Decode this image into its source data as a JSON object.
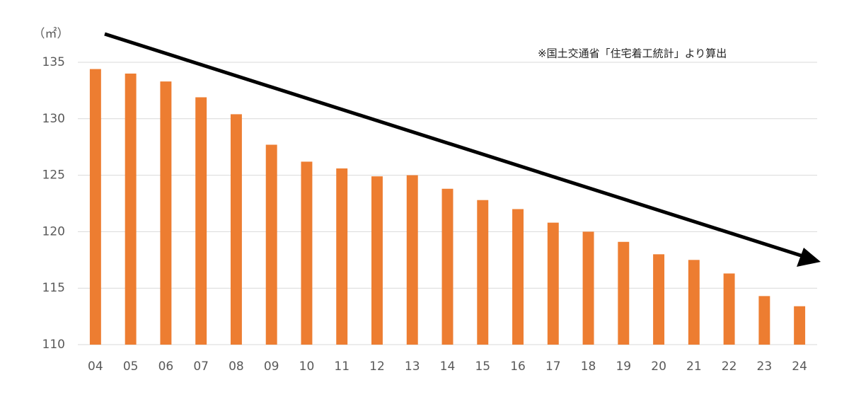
{
  "chart_data": {
    "type": "bar",
    "unit_label": "（㎡）",
    "note": "※国土交通省「住宅着工統計」より算出",
    "categories": [
      "04",
      "05",
      "06",
      "07",
      "08",
      "09",
      "10",
      "11",
      "12",
      "13",
      "14",
      "15",
      "16",
      "17",
      "18",
      "19",
      "20",
      "21",
      "22",
      "23",
      "24"
    ],
    "values": [
      134.4,
      134.0,
      133.3,
      131.9,
      130.4,
      127.7,
      126.2,
      125.6,
      124.9,
      125.0,
      123.8,
      122.8,
      122.0,
      120.8,
      120.0,
      119.1,
      118.0,
      117.5,
      116.3,
      114.3,
      113.4
    ],
    "color": "#ed7d31",
    "ylim": [
      110,
      135
    ],
    "yticks": [
      110,
      115,
      120,
      125,
      130,
      135
    ],
    "grid": true
  }
}
